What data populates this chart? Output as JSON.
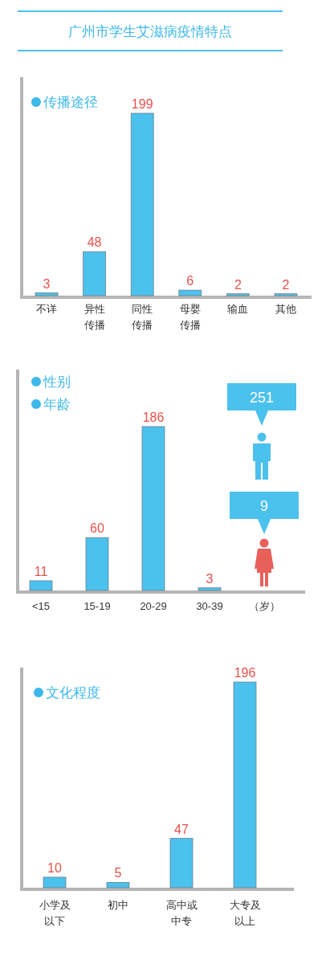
{
  "chart_data": [
    {
      "type": "bar",
      "title": "广州市学生艾滋病疫情特点",
      "subtitle": "传播途径",
      "categories": [
        "不详",
        "异性传播",
        "同性传播",
        "母婴传播",
        "输血",
        "其他"
      ],
      "values": [
        3,
        48,
        199,
        6,
        2,
        2
      ],
      "color": "#4bc1ee",
      "data_labels": true
    },
    {
      "type": "bar",
      "title": "年龄",
      "categories": [
        "<15",
        "15-19",
        "20-29",
        "30-39"
      ],
      "values": [
        11,
        60,
        186,
        3
      ],
      "xlabel": "（岁）",
      "color": "#4bc1ee",
      "data_labels": true
    },
    {
      "type": "other",
      "title": "性别",
      "categories": [
        null,
        null
      ],
      "values": [
        251,
        9
      ],
      "color": "#4bc1ee",
      "colors": [
        "#4bc1ee",
        "#e8605a"
      ],
      "data_labels": true
    },
    {
      "type": "bar",
      "title": "文化程度",
      "categories": [
        "小学及以下",
        "初中",
        "高中或中专",
        "大专及以上"
      ],
      "values": [
        10,
        5,
        47,
        196
      ],
      "color": "#4bc1ee",
      "data_labels": true
    }
  ]
}
